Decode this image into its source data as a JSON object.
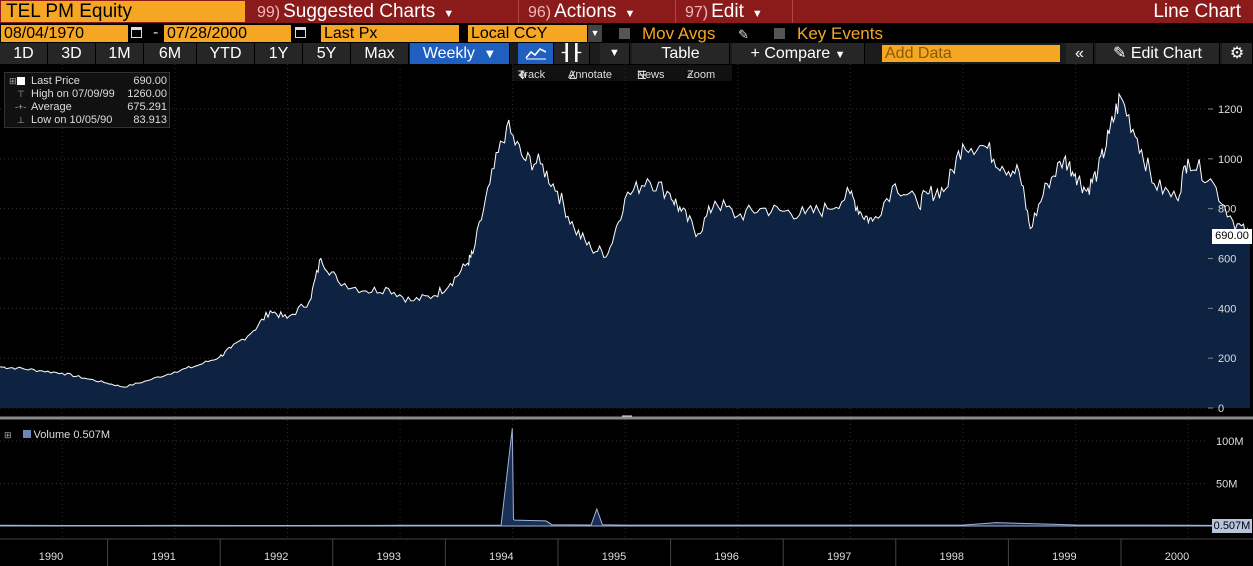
{
  "header": {
    "security": "TEL PM Equity",
    "menus": [
      {
        "num": "99)",
        "label": "Suggested Charts"
      },
      {
        "num": "96)",
        "label": "Actions"
      },
      {
        "num": "97)",
        "label": "Edit"
      }
    ],
    "chart_type": "Line Chart"
  },
  "params": {
    "start_date": "08/04/1970",
    "end_date": "07/28/2000",
    "field": "Last Px",
    "currency": "Local CCY",
    "mov_avgs": "Mov Avgs",
    "key_events": "Key Events"
  },
  "toolbar": {
    "ranges": [
      "1D",
      "3D",
      "1M",
      "6M",
      "YTD",
      "1Y",
      "5Y",
      "Max"
    ],
    "frequency": "Weekly",
    "table": "Table",
    "compare": "Compare",
    "add_data_placeholder": "Add Data",
    "edit_chart": "Edit Chart"
  },
  "subtoolbar": {
    "track": "Track",
    "annotate": "Annotate",
    "news": "News",
    "zoom": "Zoom"
  },
  "legend": {
    "last_price_label": "Last Price",
    "last_price_value": "690.00",
    "high_label": "High on 07/09/99",
    "high_value": "1260.00",
    "average_label": "Average",
    "average_value": "675.291",
    "low_label": "Low on 10/05/90",
    "low_value": "83.913"
  },
  "volume": {
    "label": "Volume",
    "value": "0.507M",
    "tag": "0.507M"
  },
  "price_tag": "690.00",
  "colors": {
    "accent": "#f5a623",
    "title_bar": "#8b1a1a",
    "area_fill": "#0e2341",
    "line": "#ffffff",
    "active_button": "#1f5fbf"
  },
  "chart_data": {
    "type": "area",
    "price_axis": {
      "ticks": [
        0,
        200,
        400,
        600,
        800,
        1000,
        1200
      ],
      "ylim": [
        0,
        1300
      ]
    },
    "volume_axis": {
      "ticks": [
        "50M",
        "100M"
      ],
      "ylim": [
        0,
        120
      ]
    },
    "x_ticks": [
      "1990",
      "1991",
      "1992",
      "1993",
      "1994",
      "1995",
      "1996",
      "1997",
      "1998",
      "1999",
      "2000"
    ],
    "price_series": {
      "name": "Last Price",
      "x": [
        1989.45,
        1989.6,
        1989.8,
        1990.0,
        1990.2,
        1990.4,
        1990.55,
        1990.76,
        1991.0,
        1991.2,
        1991.4,
        1991.5,
        1991.7,
        1991.85,
        1992.0,
        1992.2,
        1992.3,
        1992.45,
        1992.7,
        1992.9,
        1993.1,
        1993.3,
        1993.45,
        1993.6,
        1993.65,
        1993.8,
        1993.95,
        1994.1,
        1994.25,
        1994.4,
        1994.55,
        1994.7,
        1994.85,
        1995.0,
        1995.2,
        1995.4,
        1995.5,
        1995.65,
        1995.8,
        1996.0,
        1996.2,
        1996.4,
        1996.6,
        1996.8,
        1997.0,
        1997.1,
        1997.2,
        1997.4,
        1997.6,
        1997.7,
        1997.85,
        1998.0,
        1998.2,
        1998.35,
        1998.5,
        1998.6,
        1998.75,
        1998.9,
        1999.0,
        1999.1,
        1999.2,
        1999.3,
        1999.4,
        1999.55,
        1999.7,
        1999.9,
        2000.0,
        2000.2,
        2000.4,
        2000.55
      ],
      "y": [
        165,
        160,
        150,
        140,
        120,
        100,
        84,
        110,
        145,
        170,
        205,
        240,
        310,
        390,
        360,
        430,
        600,
        510,
        470,
        480,
        430,
        450,
        500,
        580,
        620,
        900,
        1130,
        1000,
        980,
        870,
        720,
        640,
        620,
        840,
        920,
        860,
        790,
        700,
        830,
        770,
        800,
        790,
        780,
        800,
        860,
        780,
        750,
        900,
        820,
        860,
        880,
        1060,
        1050,
        970,
        950,
        720,
        900,
        1000,
        940,
        870,
        950,
        1100,
        1250,
        1080,
        900,
        840,
        1000,
        920,
        750,
        690
      ]
    },
    "volume_series": {
      "name": "Volume",
      "x": [
        1989.45,
        1990.0,
        1991.0,
        1992.0,
        1993.0,
        1993.9,
        1994.0,
        1994.01,
        1994.02,
        1994.3,
        1994.35,
        1994.7,
        1994.75,
        1994.8,
        1995.0,
        1996.0,
        1997.0,
        1998.0,
        1998.3,
        1998.8,
        1999.0,
        2000.0,
        2000.55
      ],
      "y": [
        0.8,
        0.6,
        0.7,
        0.6,
        0.8,
        1.0,
        115,
        8,
        7,
        6,
        1.5,
        1.2,
        20,
        1.5,
        1.0,
        1.0,
        1.0,
        1.0,
        4,
        2,
        1.2,
        0.8,
        0.507
      ]
    }
  }
}
